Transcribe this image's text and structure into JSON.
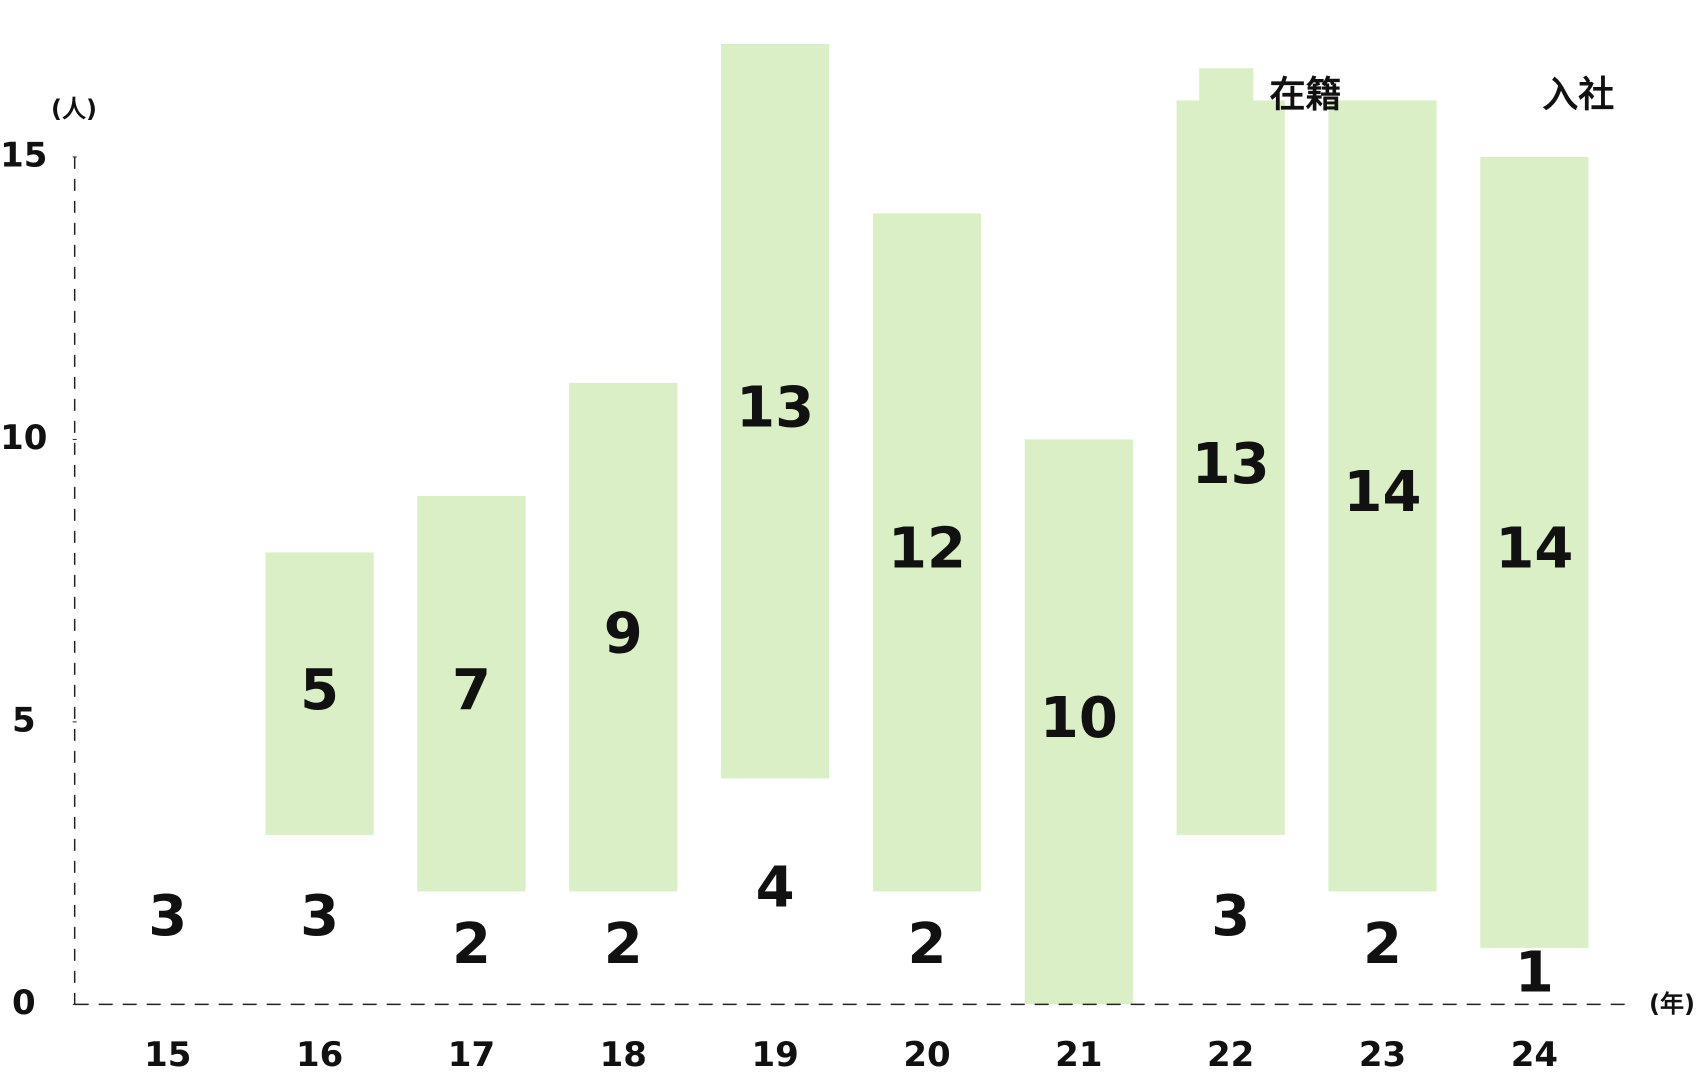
{
  "chart_data": {
    "type": "bar",
    "stacked": true,
    "y_unit": "(人)",
    "x_unit": "(年)",
    "categories": [
      "15",
      "16",
      "17",
      "18",
      "19",
      "20",
      "21",
      "22",
      "23",
      "24"
    ],
    "series": [
      {
        "name": "入社",
        "color": "#ffffff",
        "values": [
          3,
          3,
          2,
          2,
          4,
          2,
          null,
          3,
          2,
          1
        ]
      },
      {
        "name": "在籍",
        "color": "#daefc5",
        "values": [
          null,
          5,
          7,
          9,
          13,
          12,
          10,
          13,
          14,
          14
        ]
      }
    ],
    "ylim": [
      0,
      15
    ],
    "yticks": [
      0,
      5,
      10,
      15
    ],
    "legend": "top-right"
  }
}
